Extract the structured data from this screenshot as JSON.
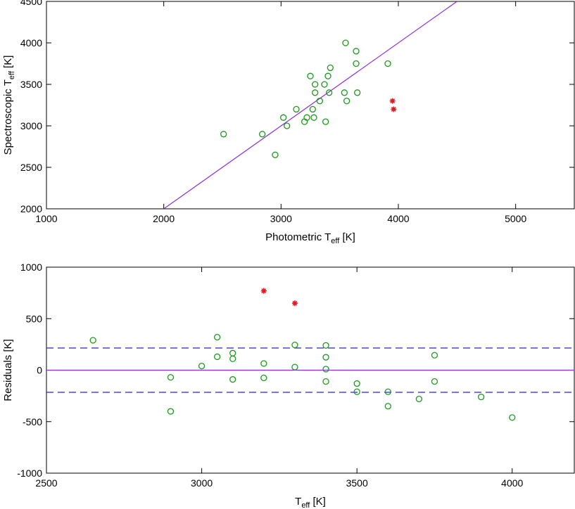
{
  "colors": {
    "fit_line": "#8a2be2",
    "points": "#1a9a1a",
    "outliers": "#e8141e",
    "dashed": "#2323d6",
    "axes": "#000000"
  },
  "chart_data": [
    {
      "type": "scatter",
      "xlabel": {
        "main": "Photometric T",
        "sub": "eff",
        "unit": " [K]"
      },
      "ylabel": {
        "main": "Spectroscopic T",
        "sub": "eff",
        "unit": " [K]"
      },
      "xlim": [
        1000,
        5500
      ],
      "ylim": [
        2000,
        4500
      ],
      "xticks": [
        1000,
        2000,
        3000,
        4000,
        5000
      ],
      "yticks": [
        2000,
        2500,
        3000,
        3500,
        4000,
        4500
      ],
      "fit_line": [
        [
          2000,
          2000
        ],
        [
          4500,
          4500
        ]
      ],
      "series": [
        {
          "marker": "open-circle",
          "points": [
            [
              2510,
              2900
            ],
            [
              2840,
              2900
            ],
            [
              2950,
              2650
            ],
            [
              3020,
              3100
            ],
            [
              3050,
              3000
            ],
            [
              3130,
              3200
            ],
            [
              3200,
              3050
            ],
            [
              3220,
              3100
            ],
            [
              3250,
              3600
            ],
            [
              3270,
              3200
            ],
            [
              3280,
              3100
            ],
            [
              3290,
              3500
            ],
            [
              3290,
              3400
            ],
            [
              3330,
              3300
            ],
            [
              3370,
              3500
            ],
            [
              3380,
              3050
            ],
            [
              3400,
              3600
            ],
            [
              3410,
              3400
            ],
            [
              3420,
              3700
            ],
            [
              3540,
              3400
            ],
            [
              3550,
              4000
            ],
            [
              3560,
              3300
            ],
            [
              3640,
              3750
            ],
            [
              3640,
              3900
            ],
            [
              3650,
              3400
            ],
            [
              3910,
              3750
            ]
          ]
        },
        {
          "marker": "asterisk",
          "points": [
            [
              3950,
              3300
            ],
            [
              3960,
              3200
            ]
          ]
        }
      ]
    },
    {
      "type": "scatter",
      "xlabel": {
        "main": "T",
        "sub": "eff",
        "unit": " [K]"
      },
      "ylabel": {
        "main": "Residuals [K]",
        "sub": "",
        "unit": ""
      },
      "xlim": [
        2500,
        4200
      ],
      "ylim": [
        -1000,
        1000
      ],
      "xticks": [
        2500,
        3000,
        3500,
        4000
      ],
      "yticks": [
        -1000,
        -500,
        0,
        500,
        1000
      ],
      "hlines": [
        {
          "y": 0,
          "style": "solid"
        },
        {
          "y": 215,
          "style": "dashed"
        },
        {
          "y": -215,
          "style": "dashed"
        }
      ],
      "series": [
        {
          "marker": "open-circle",
          "points": [
            [
              2650,
              290
            ],
            [
              2900,
              -70
            ],
            [
              2900,
              -400
            ],
            [
              3000,
              40
            ],
            [
              3050,
              320
            ],
            [
              3050,
              130
            ],
            [
              3100,
              165
            ],
            [
              3100,
              110
            ],
            [
              3100,
              -90
            ],
            [
              3200,
              65
            ],
            [
              3200,
              -75
            ],
            [
              3300,
              245
            ],
            [
              3300,
              30
            ],
            [
              3400,
              240
            ],
            [
              3400,
              125
            ],
            [
              3400,
              10
            ],
            [
              3400,
              -110
            ],
            [
              3500,
              -130
            ],
            [
              3500,
              -210
            ],
            [
              3600,
              -210
            ],
            [
              3600,
              -350
            ],
            [
              3700,
              -280
            ],
            [
              3750,
              145
            ],
            [
              3750,
              -110
            ],
            [
              3900,
              -260
            ],
            [
              4000,
              -460
            ]
          ]
        },
        {
          "marker": "asterisk",
          "points": [
            [
              3200,
              770
            ],
            [
              3300,
              650
            ]
          ]
        }
      ]
    }
  ]
}
